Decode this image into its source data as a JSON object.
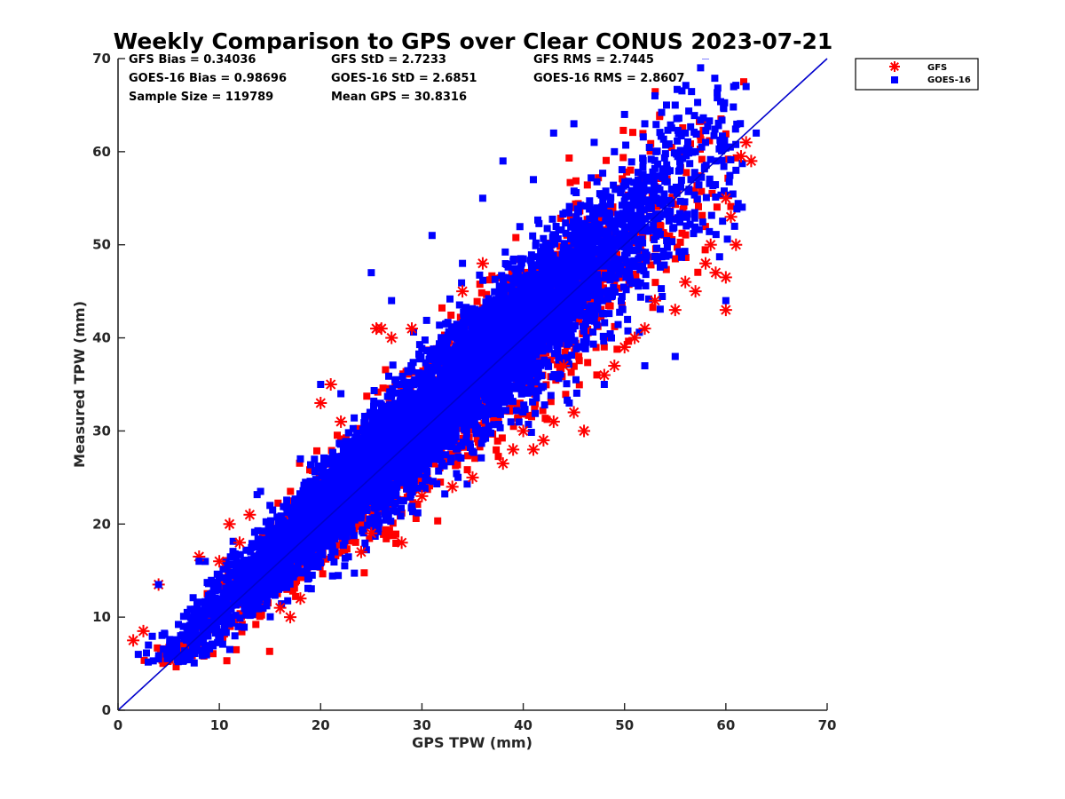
{
  "chart_data": {
    "type": "scatter",
    "title": "Weekly Comparison to GPS over Clear CONUS 2023-07-21",
    "xlabel": "GPS TPW (mm)",
    "ylabel": "Measured TPW (mm)",
    "xlim": [
      0,
      70
    ],
    "ylim": [
      0,
      70
    ],
    "xticks": [
      "0",
      "10",
      "20",
      "30",
      "40",
      "50",
      "60",
      "70"
    ],
    "yticks": [
      "0",
      "10",
      "20",
      "30",
      "40",
      "50",
      "60",
      "70"
    ],
    "grid": false,
    "legend_position": "outside top-right",
    "reference_line": {
      "name": "1:1 line",
      "color": "#0000cc",
      "from": [
        0,
        0
      ],
      "to": [
        70,
        70
      ]
    },
    "stats": {
      "gfs_bias": "GFS Bias = 0.34036",
      "goes_bias": "GOES-16 Bias = 0.98696",
      "sample_size": "Sample Size = 119789",
      "gfs_std": "GFS StD = 2.7233",
      "goes_std": "GOES-16 StD = 2.6851",
      "mean_gps": "Mean GPS = 30.8316",
      "gfs_rms": "GFS RMS = 2.7445",
      "goes_rms": "GOES-16 RMS = 2.8607"
    },
    "series": [
      {
        "name": "GFS",
        "marker": "asterisk",
        "color": "#ff0000",
        "points": [
          [
            1.5,
            7.5
          ],
          [
            2.5,
            8.5
          ],
          [
            4,
            13.5
          ],
          [
            8,
            16.5
          ],
          [
            10,
            16
          ],
          [
            11,
            20
          ],
          [
            12,
            18
          ],
          [
            13,
            21
          ],
          [
            16,
            11
          ],
          [
            17,
            10
          ],
          [
            18,
            12
          ],
          [
            20,
            33
          ],
          [
            21,
            35
          ],
          [
            22,
            31
          ],
          [
            24,
            17
          ],
          [
            25,
            19
          ],
          [
            25.5,
            41
          ],
          [
            26,
            41
          ],
          [
            27,
            40
          ],
          [
            28,
            18
          ],
          [
            29,
            41
          ],
          [
            30,
            23
          ],
          [
            33,
            24
          ],
          [
            34,
            45
          ],
          [
            35,
            25
          ],
          [
            36,
            48
          ],
          [
            38,
            26.5
          ],
          [
            39,
            28
          ],
          [
            40,
            30
          ],
          [
            41,
            28
          ],
          [
            42,
            29
          ],
          [
            43,
            31
          ],
          [
            44,
            37
          ],
          [
            45,
            32
          ],
          [
            46,
            30
          ],
          [
            48,
            36
          ],
          [
            49,
            37
          ],
          [
            50,
            39
          ],
          [
            51,
            40
          ],
          [
            52,
            41
          ],
          [
            53,
            44
          ],
          [
            55,
            43
          ],
          [
            56,
            46
          ],
          [
            57,
            45
          ],
          [
            58,
            48
          ],
          [
            58.5,
            50
          ],
          [
            59,
            47
          ],
          [
            60,
            43
          ],
          [
            60,
            46.5
          ],
          [
            60.5,
            53
          ],
          [
            61,
            50
          ],
          [
            61.5,
            59.5
          ],
          [
            62,
            61
          ],
          [
            62.5,
            59
          ],
          [
            60,
            55
          ]
        ]
      },
      {
        "name": "GOES-16",
        "marker": "square",
        "color": "#0000ff",
        "points": [
          [
            2,
            6
          ],
          [
            3,
            7
          ],
          [
            4,
            13.5
          ],
          [
            5,
            6.5
          ],
          [
            8,
            16
          ],
          [
            15,
            22
          ],
          [
            18,
            27
          ],
          [
            20,
            35
          ],
          [
            22,
            34
          ],
          [
            25,
            47
          ],
          [
            27,
            44
          ],
          [
            31,
            51
          ],
          [
            34,
            48
          ],
          [
            36,
            55
          ],
          [
            38,
            59
          ],
          [
            41,
            57
          ],
          [
            43,
            62
          ],
          [
            45,
            63
          ],
          [
            47,
            61
          ],
          [
            49,
            60
          ],
          [
            50,
            64
          ],
          [
            52,
            63
          ],
          [
            53,
            66
          ],
          [
            55,
            65
          ],
          [
            56,
            62
          ],
          [
            57,
            60
          ],
          [
            58,
            61
          ],
          [
            59,
            59
          ],
          [
            60,
            44
          ],
          [
            61,
            58
          ],
          [
            62,
            67
          ],
          [
            63,
            62
          ],
          [
            55,
            38
          ],
          [
            52,
            37
          ],
          [
            48,
            35
          ]
        ]
      }
    ]
  }
}
